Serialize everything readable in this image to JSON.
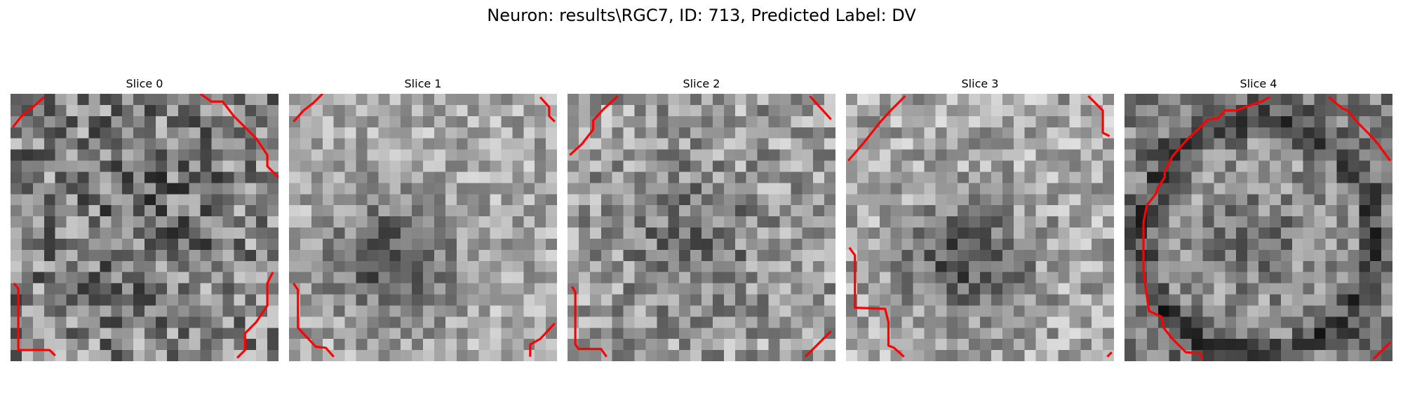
{
  "figure": {
    "title": "Neuron: results\\RGC7, ID: 713, Predicted Label: DV"
  },
  "panels": [
    {
      "title": "Slice 0"
    },
    {
      "title": "Slice 1"
    },
    {
      "title": "Slice 2"
    },
    {
      "title": "Slice 3"
    },
    {
      "title": "Slice 4"
    }
  ],
  "colors": {
    "contour": "#ff0000",
    "background": "#ffffff"
  },
  "style": {
    "colormap": "grayscale"
  }
}
